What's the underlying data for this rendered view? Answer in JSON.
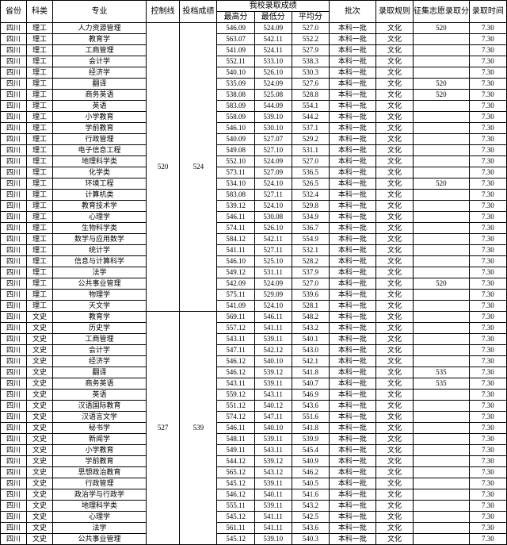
{
  "headers": {
    "province": "省份",
    "category": "科类",
    "major": "专业",
    "control_line": "控制线",
    "file_score": "投档成绩",
    "our_scores": "我校录取成绩",
    "max": "最高分",
    "min": "最低分",
    "avg": "平均分",
    "batch": "批次",
    "rule": "录取规则",
    "collect": "征集志愿录取分数",
    "time": "录取时间"
  },
  "province": "四川",
  "batch": "本科一批",
  "rule": "文化",
  "time": "7.30",
  "groups": [
    {
      "category": "理工",
      "control_line": "520",
      "file_score": "524",
      "rows": [
        {
          "major": "人力资源管理",
          "max": "546.09",
          "min": "524.09",
          "avg": "527.0",
          "collect": "520"
        },
        {
          "major": "教育学",
          "max": "563.07",
          "min": "542.11",
          "avg": "552.2",
          "collect": ""
        },
        {
          "major": "工商管理",
          "max": "541.09",
          "min": "524.11",
          "avg": "527.9",
          "collect": ""
        },
        {
          "major": "会计学",
          "max": "552.11",
          "min": "533.10",
          "avg": "538.3",
          "collect": ""
        },
        {
          "major": "经济学",
          "max": "540.10",
          "min": "526.10",
          "avg": "530.3",
          "collect": ""
        },
        {
          "major": "翻译",
          "max": "535.09",
          "min": "524.09",
          "avg": "527.6",
          "collect": "520"
        },
        {
          "major": "商务英语",
          "max": "538.08",
          "min": "525.08",
          "avg": "528.8",
          "collect": "520"
        },
        {
          "major": "英语",
          "max": "583.09",
          "min": "544.09",
          "avg": "554.1",
          "collect": ""
        },
        {
          "major": "小学教育",
          "max": "558.09",
          "min": "539.10",
          "avg": "544.2",
          "collect": ""
        },
        {
          "major": "学前教育",
          "max": "546.10",
          "min": "530.10",
          "avg": "537.1",
          "collect": ""
        },
        {
          "major": "行政管理",
          "max": "540.09",
          "min": "527.07",
          "avg": "529.2",
          "collect": ""
        },
        {
          "major": "电子信息工程",
          "max": "549.08",
          "min": "527.10",
          "avg": "531.1",
          "collect": ""
        },
        {
          "major": "地理科学类",
          "max": "552.10",
          "min": "524.09",
          "avg": "527.0",
          "collect": ""
        },
        {
          "major": "化学类",
          "max": "573.11",
          "min": "527.09",
          "avg": "536.5",
          "collect": ""
        },
        {
          "major": "环境工程",
          "max": "534.10",
          "min": "524.10",
          "avg": "526.5",
          "collect": "520"
        },
        {
          "major": "计算机类",
          "max": "583.08",
          "min": "527.11",
          "avg": "532.4",
          "collect": ""
        },
        {
          "major": "教育技术学",
          "max": "539.12",
          "min": "524.10",
          "avg": "529.8",
          "collect": ""
        },
        {
          "major": "心理学",
          "max": "546.11",
          "min": "530.08",
          "avg": "534.9",
          "collect": ""
        },
        {
          "major": "生物科学类",
          "max": "574.11",
          "min": "526.10",
          "avg": "536.7",
          "collect": ""
        },
        {
          "major": "数学与应用数学",
          "max": "584.12",
          "min": "542.11",
          "avg": "554.9",
          "collect": ""
        },
        {
          "major": "统计学",
          "max": "541.11",
          "min": "527.11",
          "avg": "532.1",
          "collect": ""
        },
        {
          "major": "信息与计算科学",
          "max": "546.10",
          "min": "525.10",
          "avg": "528.2",
          "collect": ""
        },
        {
          "major": "法学",
          "max": "549.12",
          "min": "531.11",
          "avg": "537.9",
          "collect": ""
        },
        {
          "major": "公共事业管理",
          "max": "542.09",
          "min": "524.09",
          "avg": "527.0",
          "collect": "520"
        },
        {
          "major": "物理学",
          "max": "575.11",
          "min": "529.09",
          "avg": "539.6",
          "collect": ""
        },
        {
          "major": "天文学",
          "max": "541.09",
          "min": "524.10",
          "avg": "528.1",
          "collect": ""
        }
      ]
    },
    {
      "category": "文史",
      "control_line": "527",
      "file_score": "539",
      "rows": [
        {
          "major": "教育学",
          "max": "569.11",
          "min": "546.11",
          "avg": "548.2",
          "collect": ""
        },
        {
          "major": "历史学",
          "max": "557.12",
          "min": "541.11",
          "avg": "543.2",
          "collect": ""
        },
        {
          "major": "工商管理",
          "max": "543.11",
          "min": "539.11",
          "avg": "540.1",
          "collect": ""
        },
        {
          "major": "会计学",
          "max": "547.11",
          "min": "542.12",
          "avg": "543.0",
          "collect": ""
        },
        {
          "major": "经济学",
          "max": "546.12",
          "min": "540.10",
          "avg": "542.1",
          "collect": ""
        },
        {
          "major": "翻译",
          "max": "546.12",
          "min": "539.12",
          "avg": "541.8",
          "collect": "535"
        },
        {
          "major": "商务英语",
          "max": "543.11",
          "min": "539.11",
          "avg": "540.7",
          "collect": "535"
        },
        {
          "major": "英语",
          "max": "559.12",
          "min": "543.11",
          "avg": "546.9",
          "collect": ""
        },
        {
          "major": "汉语国际教育",
          "max": "551.12",
          "min": "540.12",
          "avg": "543.6",
          "collect": ""
        },
        {
          "major": "汉语言文学",
          "max": "574.12",
          "min": "547.11",
          "avg": "551.6",
          "collect": ""
        },
        {
          "major": "秘书学",
          "max": "546.11",
          "min": "540.10",
          "avg": "541.8",
          "collect": ""
        },
        {
          "major": "新闻学",
          "max": "548.11",
          "min": "539.11",
          "avg": "539.9",
          "collect": ""
        },
        {
          "major": "小学教育",
          "max": "549.11",
          "min": "543.11",
          "avg": "545.4",
          "collect": ""
        },
        {
          "major": "学前教育",
          "max": "544.12",
          "min": "539.12",
          "avg": "540.9",
          "collect": ""
        },
        {
          "major": "思想政治教育",
          "max": "565.12",
          "min": "543.12",
          "avg": "546.2",
          "collect": ""
        },
        {
          "major": "行政管理",
          "max": "545.12",
          "min": "539.11",
          "avg": "540.5",
          "collect": ""
        },
        {
          "major": "政治学与行政学",
          "max": "546.12",
          "min": "540.11",
          "avg": "541.6",
          "collect": ""
        },
        {
          "major": "地理科学类",
          "max": "555.11",
          "min": "539.11",
          "avg": "543.2",
          "collect": ""
        },
        {
          "major": "心理学",
          "max": "545.12",
          "min": "541.11",
          "avg": "542.5",
          "collect": ""
        },
        {
          "major": "法学",
          "max": "561.11",
          "min": "541.11",
          "avg": "543.6",
          "collect": ""
        },
        {
          "major": "公共事业管理",
          "max": "545.12",
          "min": "539.10",
          "avg": "540.3",
          "collect": ""
        }
      ]
    }
  ]
}
